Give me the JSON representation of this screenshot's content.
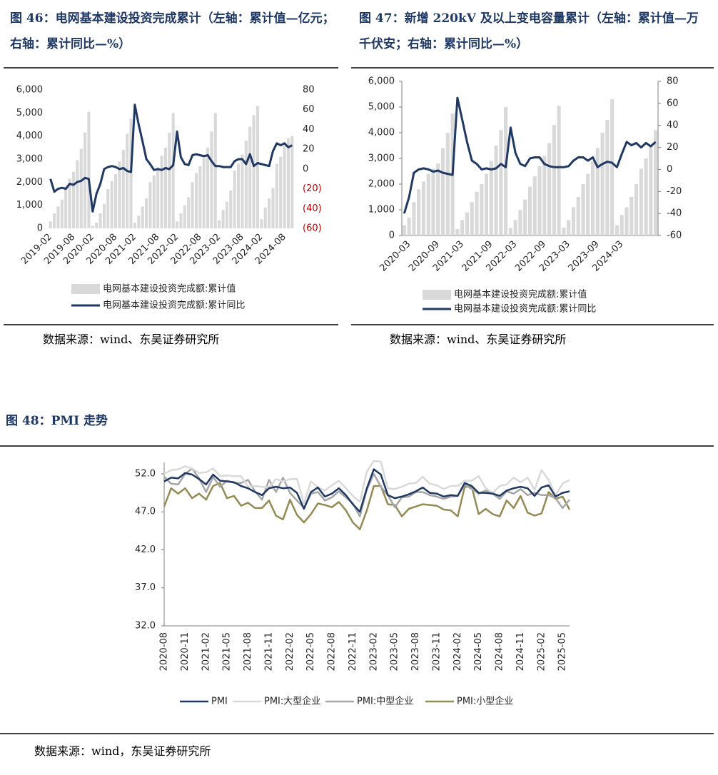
{
  "chart_data": [
    {
      "type": "combo",
      "title": "图 46：电网基本建设投资完成累计（左轴：累计值—亿元；右轴：累计同比—%）",
      "source": "数据来源：wind、东吴证券研究所",
      "categories": [
        "2019-02",
        null,
        null,
        null,
        null,
        null,
        "2019-08",
        null,
        null,
        null,
        null,
        "2020-02",
        null,
        null,
        null,
        null,
        null,
        "2020-08",
        null,
        null,
        null,
        null,
        "2021-02",
        null,
        null,
        null,
        null,
        null,
        "2021-08",
        null,
        null,
        null,
        null,
        "2022-02",
        null,
        null,
        null,
        null,
        null,
        "2022-08",
        null,
        null,
        null,
        null,
        "2023-02",
        null,
        null,
        null,
        null,
        null,
        "2023-08",
        null,
        null,
        null,
        null,
        "2024-02",
        null,
        null,
        null,
        null,
        null,
        "2024-08",
        null,
        null
      ],
      "series": [
        {
          "name": "电网基本建设投资完成额:累计值",
          "type": "bar",
          "color": "#d9d9d9",
          "values": [
            300,
            650,
            950,
            1250,
            1800,
            2150,
            2450,
            2950,
            3450,
            4150,
            5050,
            120,
            250,
            650,
            1050,
            1700,
            2050,
            2350,
            2900,
            3400,
            4100,
            4750,
            250,
            550,
            950,
            1300,
            2000,
            2300,
            2650,
            3150,
            3500,
            4150,
            5000,
            300,
            650,
            1000,
            1350,
            2000,
            2400,
            2700,
            3200,
            3500,
            4200,
            5000,
            350,
            800,
            1150,
            1650,
            2500,
            2800,
            3200,
            3800,
            4400,
            4900,
            5300,
            400,
            900,
            1300,
            1750,
            2800,
            3100,
            3600,
            3900,
            4000
          ]
        },
        {
          "name": "电网基本建设投资完成额:累计同比",
          "type": "line",
          "axis": "y2",
          "color": "#1f3864",
          "values": [
            -10,
            -23,
            -20,
            -19,
            -20,
            -15,
            -16,
            -13,
            -12,
            -9,
            -10,
            -43,
            -25,
            -15,
            0,
            2,
            3,
            2,
            0,
            1,
            -2,
            -3,
            65,
            45,
            28,
            10,
            5,
            -1,
            0,
            -1,
            1,
            0,
            4,
            38,
            12,
            5,
            4,
            14,
            15,
            14,
            13,
            14,
            8,
            3,
            3,
            2,
            2,
            2,
            8,
            10,
            10,
            5,
            15,
            3,
            6,
            5,
            4,
            3,
            18,
            26,
            24,
            26,
            22,
            24
          ]
        }
      ],
      "ylim": [
        0,
        6000
      ],
      "yticks": [
        0,
        {
          "value": 1000,
          "label": "1,000"
        },
        {
          "value": 2000,
          "label": "2,000"
        },
        {
          "value": 3000,
          "label": "3,000"
        },
        {
          "value": 4000,
          "label": "4,000"
        },
        {
          "value": 5000,
          "label": "5,000"
        },
        {
          "value": 6000,
          "label": "6,000"
        }
      ],
      "y2lim": [
        -60,
        80
      ],
      "y2ticks": [
        {
          "value": -60,
          "label": "(60)"
        },
        {
          "value": -40,
          "label": "(40)"
        },
        {
          "value": -20,
          "label": "(20)"
        },
        0,
        20,
        40,
        60,
        80
      ],
      "y2_negative_color": "#c00000"
    },
    {
      "type": "combo",
      "title": "图 47：新增 220kV 及以上变电容量累计（左轴：累计值—万千伏安；右轴：累计同比—%）",
      "source": "数据来源：wind、东吴证券研究所",
      "categories": [
        null,
        "2020-03",
        null,
        null,
        null,
        null,
        null,
        "2020-09",
        null,
        null,
        null,
        null,
        "2021-03",
        null,
        null,
        null,
        null,
        null,
        "2021-09",
        null,
        null,
        null,
        null,
        "2022-03",
        null,
        null,
        null,
        null,
        null,
        "2022-09",
        null,
        null,
        null,
        null,
        "2023-03",
        null,
        null,
        null,
        null,
        null,
        "2023-09",
        null,
        null,
        null,
        null,
        "2024-03",
        null,
        null,
        null,
        null,
        null,
        null,
        null
      ],
      "series": [
        {
          "name": "电网基本建设投资完成额:累计值",
          "type": "bar",
          "color": "#d9d9d9",
          "values": [
            400,
            700,
            1300,
            1800,
            2100,
            2400,
            2600,
            2800,
            3400,
            4000,
            4750,
            250,
            600,
            900,
            1300,
            1700,
            2000,
            2400,
            2900,
            3500,
            4100,
            5000,
            300,
            600,
            1000,
            1400,
            1900,
            2300,
            2700,
            3100,
            3600,
            4300,
            5050,
            300,
            600,
            1100,
            1500,
            2000,
            2400,
            2900,
            3400,
            4000,
            4500,
            5300,
            400,
            800,
            1100,
            1500,
            2000,
            2600,
            3000,
            3500,
            4100
          ]
        },
        {
          "name": "电网基本建设投资完成额:累计同比",
          "type": "line",
          "axis": "y2",
          "color": "#1f3864",
          "values": [
            -40,
            -25,
            -3,
            0,
            1,
            0,
            -2,
            -1,
            -3,
            -4,
            -5,
            65,
            45,
            25,
            8,
            5,
            0,
            1,
            0,
            1,
            5,
            2,
            38,
            15,
            5,
            3,
            10,
            11,
            11,
            5,
            3,
            2,
            2,
            2,
            3,
            8,
            11,
            11,
            8,
            11,
            2,
            5,
            7,
            6,
            2,
            14,
            25,
            22,
            24,
            20,
            24,
            21,
            25
          ]
        }
      ],
      "ylim": [
        0,
        6000
      ],
      "yticks": [
        0,
        {
          "value": 1000,
          "label": "1,000"
        },
        {
          "value": 2000,
          "label": "2,000"
        },
        {
          "value": 3000,
          "label": "3,000"
        },
        {
          "value": 4000,
          "label": "4,000"
        },
        {
          "value": 5000,
          "label": "5,000"
        },
        {
          "value": 6000,
          "label": "6,000"
        }
      ],
      "y2lim": [
        -60,
        80
      ],
      "y2ticks": [
        -60,
        -40,
        -20,
        0,
        20,
        40,
        60,
        80
      ]
    },
    {
      "type": "line",
      "title": "图 48：PMI 走势",
      "source": "数据来源：wind，东吴证券研究所",
      "categories": [
        "2020-08",
        null,
        null,
        "2020-11",
        null,
        null,
        "2021-02",
        null,
        null,
        "2021-05",
        null,
        null,
        "2021-08",
        null,
        null,
        "2021-11",
        null,
        null,
        "2022-02",
        null,
        null,
        "2022-05",
        null,
        null,
        "2022-08",
        null,
        null,
        "2022-11",
        null,
        null,
        "2023-02",
        null,
        null,
        "2023-05",
        null,
        null,
        "2023-08",
        null,
        null,
        "2023-11",
        null,
        null,
        "2024-02",
        null,
        null,
        "2024-05",
        null,
        null,
        "2024-08",
        null,
        null,
        "2024-11",
        null,
        null,
        "2025-02",
        null,
        null,
        "2025-05",
        null
      ],
      "series": [
        {
          "name": "PMI",
          "color": "#1f3864",
          "width": 2.5,
          "values": [
            51.0,
            51.5,
            51.4,
            52.1,
            51.9,
            51.3,
            50.6,
            51.9,
            51.1,
            51.0,
            50.9,
            50.4,
            50.1,
            49.6,
            49.2,
            50.1,
            50.3,
            50.1,
            50.2,
            49.5,
            47.4,
            49.6,
            50.2,
            49.0,
            49.4,
            50.1,
            49.2,
            48.0,
            47.0,
            50.1,
            52.6,
            51.9,
            49.2,
            48.8,
            49.0,
            49.3,
            49.7,
            50.2,
            49.5,
            49.4,
            49.0,
            49.2,
            49.1,
            50.8,
            50.4,
            49.5,
            49.5,
            49.4,
            49.1,
            49.8,
            50.1,
            50.3,
            50.1,
            49.1,
            50.2,
            50.5,
            49.0,
            49.5,
            49.7
          ]
        },
        {
          "name": "PMI:大型企业",
          "color": "#d9d9d9",
          "width": 2.5,
          "values": [
            52.0,
            52.5,
            52.6,
            53.0,
            52.7,
            52.1,
            52.2,
            52.7,
            51.7,
            51.8,
            51.7,
            51.7,
            50.3,
            50.4,
            50.3,
            50.2,
            51.3,
            51.0,
            51.3,
            51.3,
            48.1,
            51.0,
            50.2,
            49.8,
            50.5,
            51.1,
            50.1,
            49.1,
            48.3,
            52.3,
            53.7,
            53.6,
            50.1,
            50.0,
            50.3,
            50.7,
            50.8,
            51.6,
            50.7,
            50.5,
            50.0,
            50.4,
            50.4,
            51.1,
            51.1,
            51.7,
            50.1,
            49.5,
            50.4,
            50.6,
            51.5,
            50.9,
            51.5,
            49.9,
            52.5,
            51.2,
            49.2,
            50.7,
            51.2
          ]
        },
        {
          "name": "PMI:中型企业",
          "color": "#a6a6a6",
          "width": 2.5,
          "values": [
            51.6,
            50.7,
            50.6,
            52.0,
            52.7,
            51.4,
            49.6,
            51.6,
            50.3,
            51.1,
            50.8,
            50.8,
            51.2,
            49.7,
            48.6,
            51.2,
            49.6,
            51.5,
            49.5,
            48.5,
            47.5,
            49.4,
            49.6,
            48.5,
            48.9,
            49.7,
            48.9,
            48.1,
            46.4,
            49.9,
            52.0,
            50.3,
            49.2,
            47.6,
            48.9,
            49.0,
            49.6,
            49.6,
            49.2,
            49.0,
            48.7,
            49.0,
            49.1,
            50.6,
            50.0,
            49.4,
            49.8,
            49.4,
            48.7,
            49.7,
            49.4,
            50.0,
            49.2,
            49.5,
            49.2,
            49.2,
            48.8,
            47.5,
            48.6
          ]
        },
        {
          "name": "PMI:小型企业",
          "color": "#948a54",
          "width": 2.5,
          "values": [
            47.7,
            50.1,
            49.4,
            50.1,
            48.8,
            49.4,
            48.6,
            50.4,
            50.8,
            48.8,
            49.1,
            47.8,
            48.2,
            47.5,
            47.5,
            48.5,
            46.5,
            46.0,
            48.6,
            46.6,
            45.6,
            46.7,
            48.1,
            47.9,
            47.6,
            48.3,
            47.2,
            45.6,
            44.7,
            47.2,
            50.4,
            50.4,
            48.0,
            47.9,
            46.4,
            47.4,
            47.7,
            48.0,
            47.9,
            47.8,
            47.3,
            47.2,
            46.4,
            50.3,
            50.3,
            46.7,
            47.4,
            46.7,
            46.4,
            48.5,
            47.5,
            49.1,
            46.9,
            46.5,
            46.8,
            49.6,
            48.7,
            49.0,
            47.3
          ]
        }
      ],
      "ylim": [
        32,
        53.5
      ],
      "yticks": [
        {
          "value": 32,
          "label": "32.0"
        },
        {
          "value": 37,
          "label": "37.0"
        },
        {
          "value": 42,
          "label": "42.0"
        },
        {
          "value": 47,
          "label": "47.0"
        },
        {
          "value": 52,
          "label": "52.0"
        }
      ]
    }
  ]
}
